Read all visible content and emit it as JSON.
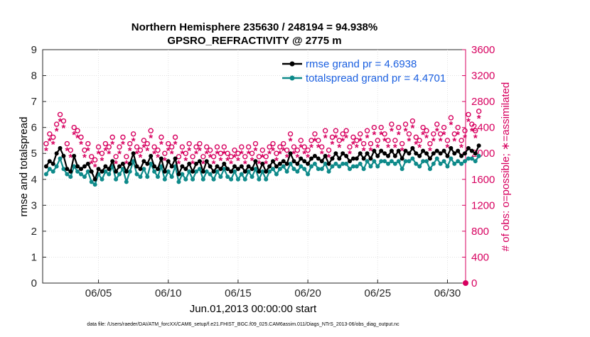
{
  "chart_data": {
    "type": "line",
    "title": "Northern Hemisphere 235630 / 248194 = 94.938%",
    "subtitle": "GPSRO_REFRACTIVITY @ 2775 m",
    "xlabel": "Jun.01,2013 00:00:00 start",
    "ylabel": "rmse and totalspread",
    "y2label": "# of obs: o=possible; ∗=assimilated",
    "footer": "data file: /Users/raeder/DAI/ATM_forcXX/CAM6_setup/f.e21.FHIST_BGC.f09_025.CAM6assim.011/Diags_NTrS_2013-06/obs_diag_output.nc",
    "xlim": [
      1.0,
      31.3
    ],
    "ylim": [
      0,
      9
    ],
    "y2lim": [
      0,
      3600
    ],
    "x_ticks": [
      5,
      10,
      15,
      20,
      25,
      30
    ],
    "x_tick_labels": [
      "06/05",
      "06/10",
      "06/15",
      "06/20",
      "06/25",
      "06/30"
    ],
    "y_ticks": [
      0,
      1,
      2,
      3,
      4,
      5,
      6,
      7,
      8,
      9
    ],
    "y_tick_labels": [
      "0",
      "1",
      "2",
      "3",
      "4",
      "5",
      "6",
      "7",
      "8",
      "9"
    ],
    "y2_ticks": [
      0,
      400,
      800,
      1200,
      1600,
      2000,
      2400,
      2800,
      3200,
      3600
    ],
    "y2_tick_labels": [
      "0",
      "400",
      "800",
      "1200",
      "1600",
      "2000",
      "2400",
      "2800",
      "3200",
      "3600"
    ],
    "legend_position": "top-right",
    "x_start": 1.25,
    "x_step": 0.25,
    "series": [
      {
        "name": "rmse grand pr = 4.6938",
        "color": "#000000",
        "marker": "circle",
        "values": [
          4.5,
          4.7,
          4.6,
          5.0,
          5.2,
          4.9,
          4.4,
          4.3,
          4.9,
          4.5,
          4.4,
          4.5,
          4.6,
          4.3,
          4.0,
          4.4,
          4.3,
          4.5,
          4.4,
          4.7,
          4.3,
          4.5,
          4.6,
          4.3,
          4.6,
          5.0,
          4.5,
          4.4,
          4.7,
          4.6,
          4.9,
          4.5,
          4.4,
          4.8,
          4.3,
          4.7,
          4.5,
          4.8,
          4.2,
          4.5,
          4.4,
          4.6,
          4.3,
          4.6,
          4.7,
          4.3,
          4.7,
          4.5,
          4.3,
          4.5,
          4.4,
          4.6,
          4.4,
          4.3,
          4.5,
          4.4,
          4.5,
          4.3,
          4.5,
          4.4,
          4.7,
          4.3,
          4.6,
          4.3,
          4.5,
          4.7,
          4.5,
          4.6,
          4.7,
          4.6,
          5.0,
          4.7,
          4.6,
          4.8,
          4.7,
          4.6,
          4.8,
          4.9,
          4.8,
          4.7,
          4.9,
          4.6,
          4.8,
          5.0,
          4.8,
          5.0,
          4.9,
          4.7,
          4.8,
          4.8,
          5.0,
          4.8,
          5.0,
          4.8,
          5.1,
          4.9,
          5.1,
          5.0,
          4.9,
          5.1,
          4.9,
          5.1,
          4.8,
          5.1,
          5.0,
          5.2,
          5.0,
          4.9,
          5.1,
          5.0,
          4.8,
          5.0,
          5.1,
          5.0,
          5.1,
          4.9,
          5.2,
          5.0,
          5.1,
          4.9,
          5.0,
          5.2,
          5.1,
          5.0,
          5.3
        ]
      },
      {
        "name": "totalspread grand pr = 4.4701",
        "color": "#0e8a8a",
        "marker": "circle",
        "values": [
          4.2,
          4.4,
          4.3,
          4.5,
          4.8,
          4.4,
          4.2,
          4.1,
          4.5,
          4.3,
          4.2,
          4.1,
          4.3,
          3.9,
          3.8,
          4.2,
          4.0,
          4.3,
          4.2,
          4.5,
          4.0,
          4.2,
          4.4,
          3.9,
          4.3,
          4.7,
          4.2,
          4.1,
          4.4,
          4.1,
          4.6,
          4.3,
          4.1,
          4.5,
          4.0,
          4.3,
          4.1,
          4.5,
          3.9,
          4.2,
          4.0,
          4.3,
          4.0,
          4.3,
          4.4,
          4.0,
          4.3,
          4.2,
          4.0,
          4.3,
          4.1,
          4.4,
          4.1,
          4.0,
          4.3,
          4.0,
          4.2,
          4.0,
          4.3,
          4.1,
          4.4,
          4.0,
          4.3,
          4.0,
          4.3,
          4.4,
          4.2,
          4.4,
          4.5,
          4.3,
          4.6,
          4.4,
          4.3,
          4.5,
          4.4,
          4.2,
          4.5,
          4.6,
          4.4,
          4.4,
          4.6,
          4.3,
          4.5,
          4.6,
          4.5,
          4.6,
          4.6,
          4.4,
          4.5,
          4.5,
          4.6,
          4.4,
          4.7,
          4.5,
          4.7,
          4.5,
          4.7,
          4.7,
          4.6,
          4.7,
          4.6,
          4.7,
          4.4,
          4.7,
          4.7,
          4.8,
          4.6,
          4.5,
          4.7,
          4.7,
          4.4,
          4.6,
          4.8,
          4.6,
          4.7,
          4.5,
          4.8,
          4.6,
          4.7,
          4.6,
          4.7,
          4.8,
          4.8,
          4.7,
          4.9
        ]
      }
    ],
    "obs_series": [
      {
        "name": "possible",
        "marker": "o",
        "color": "#d7005f",
        "axis": "y2",
        "values": [
          2150,
          2300,
          2250,
          2450,
          2600,
          2500,
          2150,
          2050,
          2400,
          2350,
          2250,
          2050,
          2150,
          1950,
          1900,
          2100,
          2000,
          2150,
          2100,
          2250,
          1950,
          2100,
          2250,
          1950,
          2150,
          2300,
          2100,
          2050,
          2200,
          2150,
          2350,
          2100,
          2050,
          2250,
          2000,
          2150,
          2100,
          2250,
          1950,
          2100,
          2000,
          2150,
          1950,
          2100,
          2150,
          1950,
          2100,
          2050,
          1950,
          2100,
          2000,
          2100,
          2000,
          1950,
          2050,
          2000,
          2100,
          1950,
          2100,
          2000,
          2150,
          1950,
          2050,
          1950,
          2100,
          2150,
          2000,
          2100,
          2150,
          2050,
          2300,
          2100,
          2050,
          2200,
          2100,
          2050,
          2200,
          2300,
          2200,
          2100,
          2350,
          2050,
          2250,
          2350,
          2200,
          2300,
          2350,
          2100,
          2250,
          2200,
          2300,
          2150,
          2350,
          2150,
          2400,
          2200,
          2400,
          2300,
          2200,
          2450,
          2200,
          2400,
          2150,
          2450,
          2300,
          2500,
          2250,
          2200,
          2400,
          2350,
          2150,
          2300,
          2450,
          2300,
          2400,
          2200,
          2550,
          2300,
          2400,
          2200,
          2350,
          2600,
          2450,
          2350,
          2650
        ]
      },
      {
        "name": "assimilated",
        "marker": "*",
        "color": "#d7005f",
        "axis": "y2",
        "values": [
          2050,
          2200,
          2150,
          2350,
          2500,
          2400,
          2050,
          1950,
          2300,
          2250,
          2150,
          1950,
          2050,
          1850,
          1800,
          2000,
          1900,
          2050,
          2000,
          2150,
          1850,
          2000,
          2150,
          1850,
          2050,
          2200,
          2000,
          1950,
          2100,
          2050,
          2250,
          2000,
          1950,
          2150,
          1900,
          2050,
          2000,
          2150,
          1850,
          2000,
          1900,
          2050,
          1850,
          2000,
          2050,
          1850,
          2000,
          1950,
          1850,
          2000,
          1900,
          2000,
          1900,
          1850,
          1950,
          1900,
          2000,
          1850,
          2000,
          1900,
          2050,
          1850,
          1950,
          1850,
          2000,
          2050,
          1900,
          2000,
          2050,
          1950,
          2200,
          2000,
          1950,
          2100,
          2000,
          1950,
          2100,
          2200,
          2100,
          2000,
          2250,
          1950,
          2150,
          2250,
          2100,
          2200,
          2250,
          2000,
          2150,
          2100,
          2200,
          2050,
          2250,
          2050,
          2300,
          2100,
          2300,
          2200,
          2100,
          2350,
          2100,
          2300,
          2050,
          2350,
          2200,
          2400,
          2150,
          2100,
          2300,
          2250,
          2050,
          2200,
          2350,
          2200,
          2300,
          2100,
          2450,
          2200,
          2300,
          2100,
          2250,
          2500,
          2350,
          2250,
          2550
        ]
      }
    ],
    "colors": {
      "rmse": "#000000",
      "spread": "#0e8a8a",
      "obs": "#d7005f",
      "legend_text": "#1a5fe0"
    }
  }
}
